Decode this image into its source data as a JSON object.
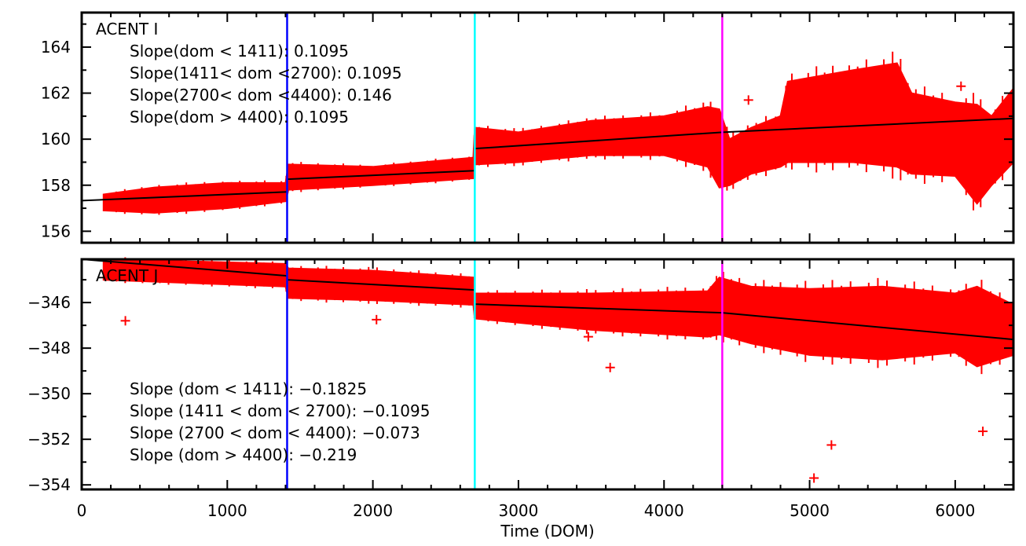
{
  "chart_data": {
    "type": "scatter",
    "xlabel": "Time (DOM)",
    "xlim": [
      0,
      6400
    ],
    "x_ticks": [
      0,
      1000,
      2000,
      3000,
      4000,
      5000,
      6000
    ],
    "x_tick_labels": [
      "0",
      "1000",
      "2000",
      "3000",
      "4000",
      "5000",
      "6000"
    ],
    "breakpoints": [
      {
        "x": 1411,
        "color": "#0000ff"
      },
      {
        "x": 2700,
        "color": "#00ffff"
      },
      {
        "x": 4400,
        "color": "#ff00ff"
      }
    ],
    "data_color": "#ff0000",
    "fit_color": "#000000",
    "panels": [
      {
        "title": "ACENT I",
        "ylim": [
          155.5,
          165.5
        ],
        "y_ticks": [
          156,
          158,
          160,
          162,
          164
        ],
        "y_tick_labels": [
          "156",
          "158",
          "160",
          "162",
          "164"
        ],
        "annotations": [
          "Slope(dom < 1411): 0.1095",
          "Slope(1411< dom <2700): 0.1095",
          "Slope(2700< dom <4400): 0.146",
          "Slope(dom > 4400): 0.1095"
        ],
        "data_envelope": [
          {
            "x": 150,
            "low": 156.9,
            "high": 157.6
          },
          {
            "x": 500,
            "low": 156.8,
            "high": 157.9
          },
          {
            "x": 1000,
            "low": 157.0,
            "high": 158.1
          },
          {
            "x": 1400,
            "low": 157.3,
            "high": 158.1
          },
          {
            "x": 1420,
            "low": 157.8,
            "high": 158.9
          },
          {
            "x": 2000,
            "low": 158.0,
            "high": 158.8
          },
          {
            "x": 2690,
            "low": 158.3,
            "high": 159.2
          },
          {
            "x": 2700,
            "low": 158.9,
            "high": 160.5
          },
          {
            "x": 3000,
            "low": 159.0,
            "high": 160.3
          },
          {
            "x": 3500,
            "low": 159.3,
            "high": 160.8
          },
          {
            "x": 4000,
            "low": 159.3,
            "high": 161.0
          },
          {
            "x": 4300,
            "low": 158.8,
            "high": 161.4
          },
          {
            "x": 4380,
            "low": 157.9,
            "high": 161.3
          },
          {
            "x": 4450,
            "low": 158.0,
            "high": 160.0
          },
          {
            "x": 4600,
            "low": 158.5,
            "high": 160.5
          },
          {
            "x": 4800,
            "low": 158.8,
            "high": 161.0
          },
          {
            "x": 4850,
            "low": 159.0,
            "high": 162.5
          },
          {
            "x": 5300,
            "low": 159.0,
            "high": 163.0
          },
          {
            "x": 5600,
            "low": 158.8,
            "high": 163.3
          },
          {
            "x": 5700,
            "low": 158.5,
            "high": 162.0
          },
          {
            "x": 6000,
            "low": 158.4,
            "high": 161.6
          },
          {
            "x": 6150,
            "low": 157.2,
            "high": 161.5
          },
          {
            "x": 6250,
            "low": 158.0,
            "high": 161.0
          },
          {
            "x": 6400,
            "low": 159.0,
            "high": 162.2
          }
        ],
        "outliers": [
          {
            "x": 4580,
            "y": 161.7
          },
          {
            "x": 6040,
            "y": 162.3
          }
        ],
        "fit_segments": [
          {
            "x0": 0,
            "y0": 157.33,
            "x1": 1411,
            "y1": 157.71
          },
          {
            "x0": 1411,
            "y0": 158.26,
            "x1": 2700,
            "y1": 158.63
          },
          {
            "x0": 2700,
            "y0": 159.59,
            "x1": 4400,
            "y1": 160.3
          },
          {
            "x0": 4400,
            "y0": 160.3,
            "x1": 6400,
            "y1": 160.9
          }
        ]
      },
      {
        "title": "ACENT J",
        "ylim": [
          -354.2,
          -344.1
        ],
        "y_ticks": [
          -354,
          -352,
          -350,
          -348,
          -346
        ],
        "y_tick_labels": [
          "−354",
          "−352",
          "−350",
          "−348",
          "−346"
        ],
        "annotations": [
          "Slope (dom < 1411): −0.1825",
          "Slope (1411 < dom < 2700): −0.1095",
          "Slope (2700 < dom < 4400): −0.073",
          "Slope (dom > 4400): −0.219"
        ],
        "data_envelope": [
          {
            "x": 150,
            "low": -345.0,
            "high": -344.1
          },
          {
            "x": 1400,
            "low": -345.3,
            "high": -344.3
          },
          {
            "x": 1420,
            "low": -345.8,
            "high": -344.5
          },
          {
            "x": 2000,
            "low": -345.9,
            "high": -344.6
          },
          {
            "x": 2690,
            "low": -346.1,
            "high": -344.9
          },
          {
            "x": 2700,
            "low": -346.7,
            "high": -345.6
          },
          {
            "x": 3500,
            "low": -347.2,
            "high": -345.6
          },
          {
            "x": 4300,
            "low": -347.5,
            "high": -345.5
          },
          {
            "x": 4380,
            "low": -347.4,
            "high": -344.9
          },
          {
            "x": 4600,
            "low": -347.8,
            "high": -345.3
          },
          {
            "x": 5000,
            "low": -348.3,
            "high": -345.4
          },
          {
            "x": 5500,
            "low": -348.5,
            "high": -345.3
          },
          {
            "x": 6000,
            "low": -348.2,
            "high": -345.6
          },
          {
            "x": 6150,
            "low": -348.8,
            "high": -345.3
          },
          {
            "x": 6400,
            "low": -348.3,
            "high": -346.1
          }
        ],
        "outliers": [
          {
            "x": 300,
            "y": -346.8
          },
          {
            "x": 2025,
            "y": -346.75
          },
          {
            "x": 3480,
            "y": -347.5
          },
          {
            "x": 3630,
            "y": -348.85
          },
          {
            "x": 5030,
            "y": -353.7
          },
          {
            "x": 5150,
            "y": -352.25
          },
          {
            "x": 6190,
            "y": -351.65
          }
        ],
        "fit_segments": [
          {
            "x0": 0,
            "y0": -344.1,
            "x1": 1411,
            "y1": -344.83
          },
          {
            "x0": 1411,
            "y0": -345.0,
            "x1": 2700,
            "y1": -345.45
          },
          {
            "x0": 2700,
            "y0": -346.07,
            "x1": 4400,
            "y1": -346.45
          },
          {
            "x0": 4400,
            "y0": -346.45,
            "x1": 6400,
            "y1": -347.62
          }
        ]
      }
    ]
  }
}
